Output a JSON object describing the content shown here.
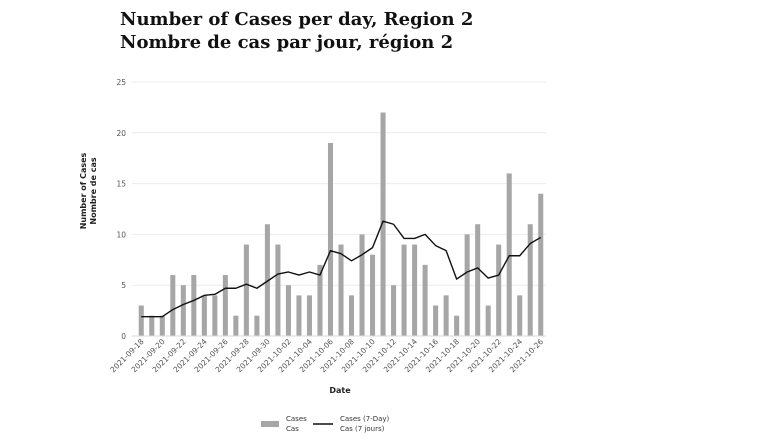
{
  "page": {
    "title_line1": "Number of Cases per day, Region 2",
    "title_line2": "Nombre de cas par jour, région 2"
  },
  "chart_data": {
    "type": "bar",
    "title": "Number of Cases per day, Region 2 / Nombre de cas par jour, région 2",
    "xlabel": "Date",
    "ylabel_line1": "Number of Cases",
    "ylabel_line2": "Nombre de cas",
    "ylim": [
      0,
      25
    ],
    "yticks": [
      0,
      5,
      10,
      15,
      20,
      25
    ],
    "grid": "horizontal",
    "legend_position": "bottom",
    "x": [
      "2021-09-18",
      "2021-09-19",
      "2021-09-20",
      "2021-09-21",
      "2021-09-22",
      "2021-09-23",
      "2021-09-24",
      "2021-09-25",
      "2021-09-26",
      "2021-09-27",
      "2021-09-28",
      "2021-09-29",
      "2021-09-30",
      "2021-10-01",
      "2021-10-02",
      "2021-10-03",
      "2021-10-04",
      "2021-10-05",
      "2021-10-06",
      "2021-10-07",
      "2021-10-08",
      "2021-10-09",
      "2021-10-10",
      "2021-10-11",
      "2021-10-12",
      "2021-10-13",
      "2021-10-14",
      "2021-10-15",
      "2021-10-16",
      "2021-10-17",
      "2021-10-18",
      "2021-10-19",
      "2021-10-20",
      "2021-10-21",
      "2021-10-22",
      "2021-10-23",
      "2021-10-24",
      "2021-10-25",
      "2021-10-26"
    ],
    "xtick_labels": [
      "2021-09-18",
      "2021-09-20",
      "2021-09-22",
      "2021-09-24",
      "2021-09-26",
      "2021-09-28",
      "2021-09-30",
      "2021-10-02",
      "2021-10-04",
      "2021-10-06",
      "2021-10-08",
      "2021-10-10",
      "2021-10-12",
      "2021-10-14",
      "2021-10-16",
      "2021-10-18",
      "2021-10-20",
      "2021-10-22",
      "2021-10-24",
      "2021-10-26"
    ],
    "series": [
      {
        "name": "Cases / Cas",
        "kind": "bar",
        "color": "#a6a6a6",
        "values": [
          3,
          2,
          2,
          6,
          5,
          6,
          4,
          4,
          6,
          2,
          9,
          2,
          11,
          9,
          5,
          4,
          4,
          7,
          19,
          9,
          4,
          10,
          8,
          22,
          5,
          9,
          9,
          7,
          3,
          4,
          2,
          10,
          11,
          3,
          9,
          16,
          4,
          11,
          14
        ]
      },
      {
        "name": "Cases (7-Day) / Cas (7 jours)",
        "kind": "line",
        "color": "#111111",
        "values": [
          1.9,
          1.9,
          1.9,
          2.6,
          3.1,
          3.5,
          4.0,
          4.1,
          4.7,
          4.7,
          5.1,
          4.7,
          5.4,
          6.1,
          6.3,
          6.0,
          6.3,
          6.0,
          8.4,
          8.1,
          7.4,
          8.0,
          8.7,
          11.3,
          11.0,
          9.6,
          9.6,
          10.0,
          8.9,
          8.4,
          5.6,
          6.3,
          6.7,
          5.7,
          6.0,
          7.9,
          7.9,
          9.1,
          9.7
        ]
      }
    ]
  },
  "legend": {
    "bar_line1": "Cases",
    "bar_line2": "Cas",
    "line_line1": "Cases (7-Day)",
    "line_line2": "Cas (7 jours)"
  }
}
